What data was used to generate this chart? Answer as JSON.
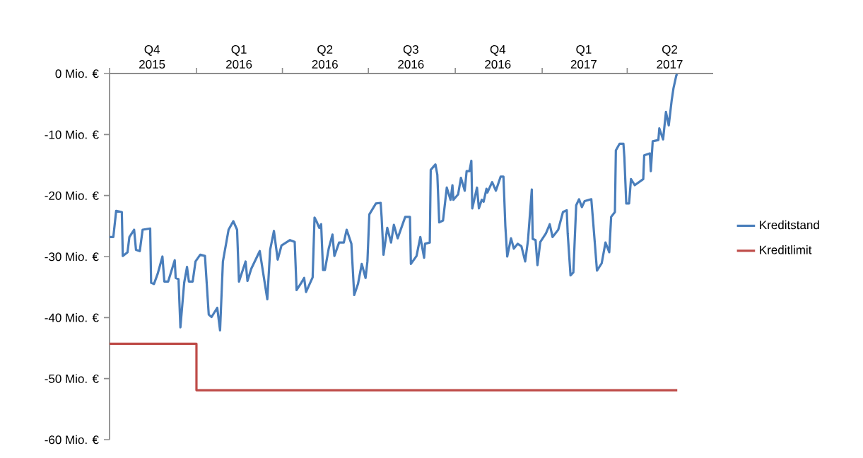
{
  "chart_data": {
    "type": "line",
    "xlim": [
      "2015-10-01",
      "2017-07-01"
    ],
    "xticks": [
      {
        "value": "2015-10-01",
        "label": null
      },
      {
        "value": "2016-01-01",
        "label": null
      },
      {
        "value": "2016-04-01",
        "label": null
      },
      {
        "value": "2016-07-01",
        "label": null
      },
      {
        "value": "2016-10-01",
        "label": null
      },
      {
        "value": "2017-01-01",
        "label": null
      },
      {
        "value": "2017-04-01",
        "label": null
      },
      {
        "value": "2015-11-15",
        "label": "Q4 2015"
      },
      {
        "value": "2016-02-15",
        "label": "Q1 2016"
      },
      {
        "value": "2016-05-16",
        "label": "Q2 2016"
      },
      {
        "value": "2016-08-15",
        "label": "Q3 2016"
      },
      {
        "value": "2016-11-15",
        "label": "Q4 2016"
      },
      {
        "value": "2017-02-14",
        "label": "Q1 2017"
      },
      {
        "value": "2017-05-16",
        "label": "Q2 2017"
      }
    ],
    "ylim": [
      -60,
      0
    ],
    "yticks": [
      {
        "value": -60,
        "label": "-60 Mio. €"
      },
      {
        "value": -50,
        "label": "-50 Mio. €"
      },
      {
        "value": -40,
        "label": "-40 Mio. €"
      },
      {
        "value": -30,
        "label": "-30 Mio. €"
      },
      {
        "value": -20,
        "label": "-20 Mio. €"
      },
      {
        "value": -10,
        "label": "-10 Mio. €"
      },
      {
        "value": 0,
        "label": "0 Mio. €"
      }
    ],
    "grid": false,
    "legend": "right",
    "series": [
      {
        "name": "Kreditstand",
        "color": "#4a7ebb",
        "x": [
          "2015-10-01",
          "2015-10-05",
          "2015-10-08",
          "2015-10-14",
          "2015-10-15",
          "2015-10-20",
          "2015-10-22",
          "2015-10-27",
          "2015-10-29",
          "2015-11-02",
          "2015-11-05",
          "2015-11-13",
          "2015-11-14",
          "2015-11-17",
          "2015-11-21",
          "2015-11-26",
          "2015-11-28",
          "2015-12-02",
          "2015-12-09",
          "2015-12-10",
          "2015-12-13",
          "2015-12-15",
          "2015-12-19",
          "2015-12-22",
          "2015-12-24",
          "2015-12-28",
          "2015-12-31",
          "2016-01-05",
          "2016-01-10",
          "2016-01-14",
          "2016-01-17",
          "2016-01-23",
          "2016-01-26",
          "2016-01-29",
          "2016-02-04",
          "2016-02-09",
          "2016-02-13",
          "2016-02-15",
          "2016-02-22",
          "2016-02-24",
          "2016-02-28",
          "2016-03-08",
          "2016-03-16",
          "2016-03-19",
          "2016-03-23",
          "2016-03-27",
          "2016-03-31",
          "2016-04-09",
          "2016-04-14",
          "2016-04-16",
          "2016-04-21",
          "2016-04-24",
          "2016-04-26",
          "2016-05-03",
          "2016-05-05",
          "2016-05-07",
          "2016-05-10",
          "2016-05-12",
          "2016-05-14",
          "2016-05-16",
          "2016-05-20",
          "2016-05-24",
          "2016-05-26",
          "2016-05-31",
          "2016-06-05",
          "2016-06-08",
          "2016-06-13",
          "2016-06-16",
          "2016-06-20",
          "2016-06-24",
          "2016-06-28",
          "2016-06-30",
          "2016-07-02",
          "2016-07-09",
          "2016-07-14",
          "2016-07-15",
          "2016-07-17",
          "2016-07-21",
          "2016-07-25",
          "2016-07-28",
          "2016-08-01",
          "2016-08-09",
          "2016-08-14",
          "2016-08-15",
          "2016-08-21",
          "2016-08-25",
          "2016-08-29",
          "2016-08-30",
          "2016-09-04",
          "2016-09-05",
          "2016-09-10",
          "2016-09-12",
          "2016-09-14",
          "2016-09-18",
          "2016-09-22",
          "2016-09-26",
          "2016-09-28",
          "2016-09-29",
          "2016-10-04",
          "2016-10-07",
          "2016-10-11",
          "2016-10-13",
          "2016-10-16",
          "2016-10-18",
          "2016-10-19",
          "2016-10-24",
          "2016-10-26",
          "2016-10-29",
          "2016-10-31",
          "2016-11-03",
          "2016-11-04",
          "2016-11-09",
          "2016-11-13",
          "2016-11-18",
          "2016-11-21",
          "2016-11-23",
          "2016-11-25",
          "2016-11-29",
          "2016-12-02",
          "2016-12-06",
          "2016-12-10",
          "2016-12-14",
          "2016-12-17",
          "2016-12-21",
          "2016-12-22",
          "2016-12-25",
          "2016-12-27",
          "2016-12-30",
          "2017-01-05",
          "2017-01-09",
          "2017-01-12",
          "2017-01-18",
          "2017-01-23",
          "2017-01-27",
          "2017-01-28",
          "2017-01-31",
          "2017-02-03",
          "2017-02-06",
          "2017-02-09",
          "2017-02-12",
          "2017-02-15",
          "2017-02-22",
          "2017-02-24",
          "2017-02-28",
          "2017-03-05",
          "2017-03-09",
          "2017-03-13",
          "2017-03-15",
          "2017-03-19",
          "2017-03-20",
          "2017-03-24",
          "2017-03-28",
          "2017-03-29",
          "2017-03-31",
          "2017-04-03",
          "2017-04-05",
          "2017-04-09",
          "2017-04-18",
          "2017-04-19",
          "2017-04-25",
          "2017-04-26",
          "2017-04-28",
          "2017-05-04",
          "2017-05-05",
          "2017-05-09",
          "2017-05-12",
          "2017-05-15",
          "2017-05-18",
          "2017-05-20",
          "2017-05-23",
          "2017-05-24"
        ],
        "values": [
          -26.8,
          -26.8,
          -22.5,
          -22.7,
          -29.9,
          -29.3,
          -26.8,
          -25.6,
          -28.9,
          -29.1,
          -25.6,
          -25.4,
          -34.3,
          -34.5,
          -32.8,
          -30.0,
          -34.1,
          -34.1,
          -30.6,
          -33.5,
          -33.7,
          -41.6,
          -34.3,
          -31.7,
          -34.1,
          -34.1,
          -30.8,
          -29.7,
          -29.9,
          -39.5,
          -39.9,
          -38.4,
          -42.1,
          -30.8,
          -25.6,
          -24.2,
          -25.6,
          -34.1,
          -30.8,
          -34.0,
          -32.0,
          -29.1,
          -37.0,
          -28.9,
          -25.8,
          -30.5,
          -28.2,
          -27.3,
          -27.6,
          -35.5,
          -34.3,
          -33.5,
          -35.8,
          -33.4,
          -23.6,
          -24.2,
          -25.3,
          -24.7,
          -32.2,
          -32.2,
          -28.7,
          -26.4,
          -29.9,
          -27.7,
          -27.7,
          -25.6,
          -27.9,
          -36.3,
          -34.5,
          -31.2,
          -33.5,
          -30.8,
          -23.1,
          -21.3,
          -21.2,
          -23.5,
          -29.7,
          -25.3,
          -27.7,
          -24.8,
          -27.0,
          -23.5,
          -23.5,
          -31.2,
          -29.9,
          -26.8,
          -30.2,
          -27.9,
          -27.7,
          -15.8,
          -14.9,
          -16.6,
          -24.4,
          -24.1,
          -18.7,
          -20.7,
          -18.3,
          -20.7,
          -19.8,
          -17.1,
          -19.2,
          -16.0,
          -16.0,
          -14.3,
          -22.1,
          -18.7,
          -22.1,
          -20.7,
          -21.0,
          -18.9,
          -19.5,
          -17.8,
          -19.2,
          -16.9,
          -16.9,
          -25.0,
          -30.0,
          -27.0,
          -28.7,
          -27.9,
          -28.3,
          -30.8,
          -27.3,
          -19.0,
          -27.1,
          -27.3,
          -31.4,
          -27.6,
          -26.2,
          -24.7,
          -26.8,
          -25.6,
          -22.7,
          -22.4,
          -26.2,
          -33.1,
          -32.6,
          -21.6,
          -20.6,
          -21.9,
          -20.9,
          -20.6,
          -24.4,
          -32.3,
          -31.1,
          -27.7,
          -29.3,
          -23.5,
          -22.7,
          -12.6,
          -11.5,
          -11.5,
          -13.7,
          -21.3,
          -21.3,
          -17.3,
          -18.3,
          -17.3,
          -13.4,
          -13.1,
          -16.0,
          -11.1,
          -10.9,
          -9.0,
          -10.8,
          -6.3,
          -8.5,
          -4.5,
          -2.4,
          -0.3,
          -0.1
        ]
      },
      {
        "name": "Kreditlimit",
        "color": "#be4b48",
        "type": "step",
        "x": [
          "2015-10-01",
          "2016-01-01",
          "2017-05-24"
        ],
        "values": [
          -44.3,
          -51.9,
          -51.9
        ]
      }
    ]
  }
}
